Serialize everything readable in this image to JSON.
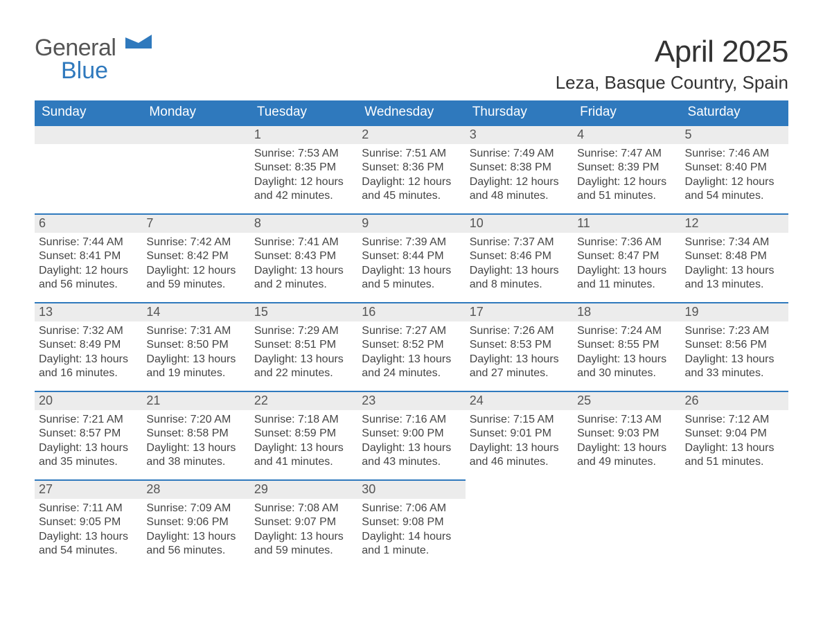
{
  "logo": {
    "text1": "General",
    "text2": "Blue"
  },
  "title": {
    "month": "April 2025",
    "location": "Leza, Basque Country, Spain"
  },
  "colors": {
    "header_bg": "#2f79bd",
    "header_text": "#ffffff",
    "daybar_bg": "#ececec",
    "daybar_border": "#2f79bd",
    "body_text": "#444444",
    "logo_blue": "#2f79bd",
    "logo_gray": "#555555",
    "page_bg": "#ffffff"
  },
  "typography": {
    "month_title_pt": 44,
    "location_pt": 26,
    "th_pt": 19,
    "daynum_pt": 18,
    "cell_pt": 16
  },
  "weekdays": [
    "Sunday",
    "Monday",
    "Tuesday",
    "Wednesday",
    "Thursday",
    "Friday",
    "Saturday"
  ],
  "leading_blanks": 2,
  "days": [
    {
      "n": "1",
      "sunrise": "Sunrise: 7:53 AM",
      "sunset": "Sunset: 8:35 PM",
      "daylight": "Daylight: 12 hours and 42 minutes."
    },
    {
      "n": "2",
      "sunrise": "Sunrise: 7:51 AM",
      "sunset": "Sunset: 8:36 PM",
      "daylight": "Daylight: 12 hours and 45 minutes."
    },
    {
      "n": "3",
      "sunrise": "Sunrise: 7:49 AM",
      "sunset": "Sunset: 8:38 PM",
      "daylight": "Daylight: 12 hours and 48 minutes."
    },
    {
      "n": "4",
      "sunrise": "Sunrise: 7:47 AM",
      "sunset": "Sunset: 8:39 PM",
      "daylight": "Daylight: 12 hours and 51 minutes."
    },
    {
      "n": "5",
      "sunrise": "Sunrise: 7:46 AM",
      "sunset": "Sunset: 8:40 PM",
      "daylight": "Daylight: 12 hours and 54 minutes."
    },
    {
      "n": "6",
      "sunrise": "Sunrise: 7:44 AM",
      "sunset": "Sunset: 8:41 PM",
      "daylight": "Daylight: 12 hours and 56 minutes."
    },
    {
      "n": "7",
      "sunrise": "Sunrise: 7:42 AM",
      "sunset": "Sunset: 8:42 PM",
      "daylight": "Daylight: 12 hours and 59 minutes."
    },
    {
      "n": "8",
      "sunrise": "Sunrise: 7:41 AM",
      "sunset": "Sunset: 8:43 PM",
      "daylight": "Daylight: 13 hours and 2 minutes."
    },
    {
      "n": "9",
      "sunrise": "Sunrise: 7:39 AM",
      "sunset": "Sunset: 8:44 PM",
      "daylight": "Daylight: 13 hours and 5 minutes."
    },
    {
      "n": "10",
      "sunrise": "Sunrise: 7:37 AM",
      "sunset": "Sunset: 8:46 PM",
      "daylight": "Daylight: 13 hours and 8 minutes."
    },
    {
      "n": "11",
      "sunrise": "Sunrise: 7:36 AM",
      "sunset": "Sunset: 8:47 PM",
      "daylight": "Daylight: 13 hours and 11 minutes."
    },
    {
      "n": "12",
      "sunrise": "Sunrise: 7:34 AM",
      "sunset": "Sunset: 8:48 PM",
      "daylight": "Daylight: 13 hours and 13 minutes."
    },
    {
      "n": "13",
      "sunrise": "Sunrise: 7:32 AM",
      "sunset": "Sunset: 8:49 PM",
      "daylight": "Daylight: 13 hours and 16 minutes."
    },
    {
      "n": "14",
      "sunrise": "Sunrise: 7:31 AM",
      "sunset": "Sunset: 8:50 PM",
      "daylight": "Daylight: 13 hours and 19 minutes."
    },
    {
      "n": "15",
      "sunrise": "Sunrise: 7:29 AM",
      "sunset": "Sunset: 8:51 PM",
      "daylight": "Daylight: 13 hours and 22 minutes."
    },
    {
      "n": "16",
      "sunrise": "Sunrise: 7:27 AM",
      "sunset": "Sunset: 8:52 PM",
      "daylight": "Daylight: 13 hours and 24 minutes."
    },
    {
      "n": "17",
      "sunrise": "Sunrise: 7:26 AM",
      "sunset": "Sunset: 8:53 PM",
      "daylight": "Daylight: 13 hours and 27 minutes."
    },
    {
      "n": "18",
      "sunrise": "Sunrise: 7:24 AM",
      "sunset": "Sunset: 8:55 PM",
      "daylight": "Daylight: 13 hours and 30 minutes."
    },
    {
      "n": "19",
      "sunrise": "Sunrise: 7:23 AM",
      "sunset": "Sunset: 8:56 PM",
      "daylight": "Daylight: 13 hours and 33 minutes."
    },
    {
      "n": "20",
      "sunrise": "Sunrise: 7:21 AM",
      "sunset": "Sunset: 8:57 PM",
      "daylight": "Daylight: 13 hours and 35 minutes."
    },
    {
      "n": "21",
      "sunrise": "Sunrise: 7:20 AM",
      "sunset": "Sunset: 8:58 PM",
      "daylight": "Daylight: 13 hours and 38 minutes."
    },
    {
      "n": "22",
      "sunrise": "Sunrise: 7:18 AM",
      "sunset": "Sunset: 8:59 PM",
      "daylight": "Daylight: 13 hours and 41 minutes."
    },
    {
      "n": "23",
      "sunrise": "Sunrise: 7:16 AM",
      "sunset": "Sunset: 9:00 PM",
      "daylight": "Daylight: 13 hours and 43 minutes."
    },
    {
      "n": "24",
      "sunrise": "Sunrise: 7:15 AM",
      "sunset": "Sunset: 9:01 PM",
      "daylight": "Daylight: 13 hours and 46 minutes."
    },
    {
      "n": "25",
      "sunrise": "Sunrise: 7:13 AM",
      "sunset": "Sunset: 9:03 PM",
      "daylight": "Daylight: 13 hours and 49 minutes."
    },
    {
      "n": "26",
      "sunrise": "Sunrise: 7:12 AM",
      "sunset": "Sunset: 9:04 PM",
      "daylight": "Daylight: 13 hours and 51 minutes."
    },
    {
      "n": "27",
      "sunrise": "Sunrise: 7:11 AM",
      "sunset": "Sunset: 9:05 PM",
      "daylight": "Daylight: 13 hours and 54 minutes."
    },
    {
      "n": "28",
      "sunrise": "Sunrise: 7:09 AM",
      "sunset": "Sunset: 9:06 PM",
      "daylight": "Daylight: 13 hours and 56 minutes."
    },
    {
      "n": "29",
      "sunrise": "Sunrise: 7:08 AM",
      "sunset": "Sunset: 9:07 PM",
      "daylight": "Daylight: 13 hours and 59 minutes."
    },
    {
      "n": "30",
      "sunrise": "Sunrise: 7:06 AM",
      "sunset": "Sunset: 9:08 PM",
      "daylight": "Daylight: 14 hours and 1 minute."
    }
  ]
}
